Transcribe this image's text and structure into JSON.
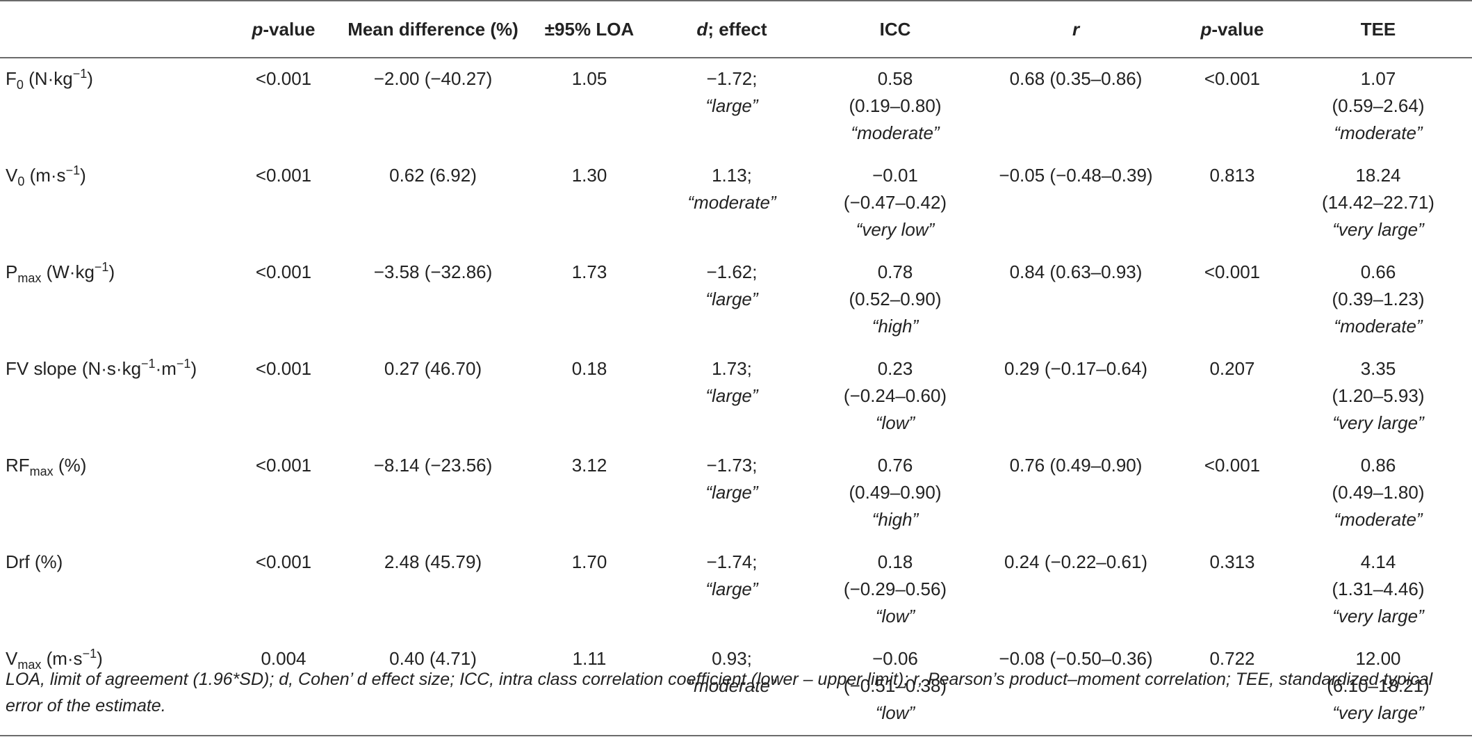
{
  "headers": {
    "c1": "",
    "c2_italic": "p",
    "c2_rest": "-value",
    "c3": "Mean difference (%)",
    "c4": "±95% LOA",
    "c5_italic": "d",
    "c5_rest": "; effect",
    "c6": "ICC",
    "c7": "r",
    "c8_italic": "p",
    "c8_rest": "-value",
    "c9": "TEE"
  },
  "rows": [
    {
      "param_base": "F",
      "param_sub": "0",
      "param_unit_a": " (N·kg",
      "param_sup": "−1",
      "param_unit_b": ")",
      "param_sup2": "",
      "param_unit_c": "",
      "p": "<0.001",
      "mean_diff": "−2.00 (−40.27)",
      "loa": "1.05",
      "d_value": "−1.72;",
      "d_effect": "“large”",
      "icc_value": "0.58",
      "icc_ci": "(0.19–0.80)",
      "icc_label": "“moderate”",
      "r": "0.68 (0.35–0.86)",
      "p2": "<0.001",
      "tee_value": "1.07",
      "tee_ci": "(0.59–2.64)",
      "tee_label": "“moderate”"
    },
    {
      "param_base": "V",
      "param_sub": "0",
      "param_unit_a": " (m·s",
      "param_sup": "−1",
      "param_unit_b": ")",
      "param_sup2": "",
      "param_unit_c": "",
      "p": "<0.001",
      "mean_diff": "0.62 (6.92)",
      "loa": "1.30",
      "d_value": "1.13;",
      "d_effect": "“moderate”",
      "icc_value": "−0.01",
      "icc_ci": "(−0.47–0.42)",
      "icc_label": "“very low”",
      "r": "−0.05 (−0.48–0.39)",
      "p2": "0.813",
      "tee_value": "18.24",
      "tee_ci": "(14.42–22.71)",
      "tee_label": "“very large”"
    },
    {
      "param_base": "P",
      "param_sub": "max",
      "param_unit_a": " (W·kg",
      "param_sup": "−1",
      "param_unit_b": ")",
      "param_sup2": "",
      "param_unit_c": "",
      "p": "<0.001",
      "mean_diff": "−3.58 (−32.86)",
      "loa": "1.73",
      "d_value": "−1.62;",
      "d_effect": "“large”",
      "icc_value": "0.78",
      "icc_ci": "(0.52–0.90)",
      "icc_label": "“high”",
      "r": "0.84 (0.63–0.93)",
      "p2": "<0.001",
      "tee_value": "0.66",
      "tee_ci": "(0.39–1.23)",
      "tee_label": "“moderate”"
    },
    {
      "param_base": "FV slope",
      "param_sub": "",
      "param_unit_a": " (N·s·kg",
      "param_sup": "−1",
      "param_unit_b": "·m",
      "param_sup2": "−1",
      "param_unit_c": ")",
      "p": "<0.001",
      "mean_diff": "0.27 (46.70)",
      "loa": "0.18",
      "d_value": "1.73;",
      "d_effect": "“large”",
      "icc_value": "0.23",
      "icc_ci": "(−0.24–0.60)",
      "icc_label": "“low”",
      "r": "0.29 (−0.17–0.64)",
      "p2": "0.207",
      "tee_value": "3.35",
      "tee_ci": "(1.20–5.93)",
      "tee_label": "“very large”"
    },
    {
      "param_base": "RF",
      "param_sub": "max",
      "param_unit_a": " (%)",
      "param_sup": "",
      "param_unit_b": "",
      "param_sup2": "",
      "param_unit_c": "",
      "p": "<0.001",
      "mean_diff": "−8.14 (−23.56)",
      "loa": "3.12",
      "d_value": "−1.73;",
      "d_effect": "“large”",
      "icc_value": "0.76",
      "icc_ci": "(0.49–0.90)",
      "icc_label": "“high”",
      "r": "0.76 (0.49–0.90)",
      "p2": "<0.001",
      "tee_value": "0.86",
      "tee_ci": "(0.49–1.80)",
      "tee_label": "“moderate”"
    },
    {
      "param_base": "Drf (%)",
      "param_sub": "",
      "param_unit_a": "",
      "param_sup": "",
      "param_unit_b": "",
      "param_sup2": "",
      "param_unit_c": "",
      "p": "<0.001",
      "mean_diff": "2.48 (45.79)",
      "loa": "1.70",
      "d_value": "−1.74;",
      "d_effect": "“large”",
      "icc_value": "0.18",
      "icc_ci": "(−0.29–0.56)",
      "icc_label": "“low”",
      "r": "0.24 (−0.22–0.61)",
      "p2": "0.313",
      "tee_value": "4.14",
      "tee_ci": "(1.31–4.46)",
      "tee_label": "“very large”"
    },
    {
      "param_base": "V",
      "param_sub": "max",
      "param_unit_a": " (m·s",
      "param_sup": "−1",
      "param_unit_b": ")",
      "param_sup2": "",
      "param_unit_c": "",
      "p": "0.004",
      "mean_diff": "0.40 (4.71)",
      "loa": "1.11",
      "d_value": "0.93;",
      "d_effect": "“moderate”",
      "icc_value": "−0.06",
      "icc_ci": "(−0.51–0.38)",
      "icc_label": "“low”",
      "r": "−0.08 (−0.50–0.36)",
      "p2": "0.722",
      "tee_value": "12.00",
      "tee_ci": "(6.10–18.21)",
      "tee_label": "“very large”"
    }
  ],
  "footnote": "LOA, limit of agreement (1.96*SD); d, Cohen’ d effect size; ICC, intra class correlation coefficient (lower – upper limit); r, Pearson’s product–moment correlation; TEE, standardized typical error of the estimate."
}
